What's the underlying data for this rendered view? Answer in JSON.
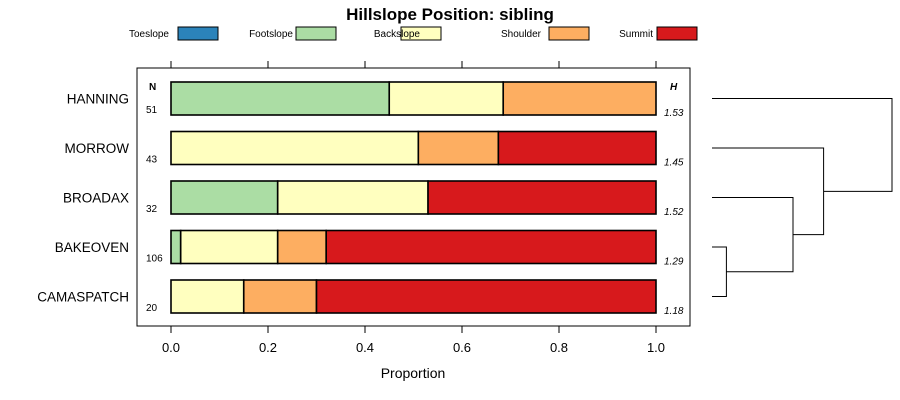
{
  "chart_data": {
    "type": "bar",
    "stacked": true,
    "orientation": "horizontal",
    "title": "Hillslope Position: sibling",
    "xlabel": "Proportion",
    "xlim": [
      0,
      1
    ],
    "xticks": [
      "0.0",
      "0.2",
      "0.4",
      "0.6",
      "0.8",
      "1.0"
    ],
    "categories": [
      "HANNING",
      "MORROW",
      "BROADAX",
      "BAKEOVEN",
      "CAMASPATCH"
    ],
    "n_header": "N",
    "h_header": "H",
    "n_values": [
      "51",
      "43",
      "32",
      "106",
      "20"
    ],
    "h_values": [
      "1.53",
      "1.45",
      "1.52",
      "1.29",
      "1.18"
    ],
    "legend_position": "top",
    "series": [
      {
        "name": "Toeslope",
        "color": "#2B83BA",
        "values": [
          0.0,
          0.0,
          0.0,
          0.0,
          0.0
        ]
      },
      {
        "name": "Footslope",
        "color": "#ABDDA4",
        "values": [
          0.45,
          0.0,
          0.22,
          0.02,
          0.0
        ]
      },
      {
        "name": "Backslope",
        "color": "#FFFFBF",
        "values": [
          0.235,
          0.51,
          0.31,
          0.2,
          0.15
        ]
      },
      {
        "name": "Shoulder",
        "color": "#FDAE61",
        "values": [
          0.315,
          0.165,
          0.0,
          0.1,
          0.15
        ]
      },
      {
        "name": "Summit",
        "color": "#D7191C",
        "values": [
          0.0,
          0.325,
          0.47,
          0.68,
          0.7
        ]
      }
    ],
    "dendrogram": {
      "leaves": [
        "HANNING",
        "MORROW",
        "BROADAX",
        "BAKEOVEN",
        "CAMASPATCH"
      ],
      "merges": [
        {
          "a": "BAKEOVEN",
          "b": "CAMASPATCH",
          "height": 0.08
        },
        {
          "a": "BROADAX",
          "b": "BAKEOVEN+CAMASPATCH",
          "height": 0.45
        },
        {
          "a": "MORROW",
          "b": "BROADAX+BAKEOVEN+CAMASPATCH",
          "height": 0.62
        },
        {
          "a": "HANNING",
          "b": "MORROW+BROADAX+BAKEOVEN+CAMASPATCH",
          "height": 1.0
        }
      ]
    }
  }
}
